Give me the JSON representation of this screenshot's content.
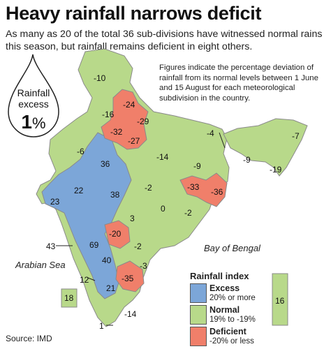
{
  "headline": "Heavy rainfall narrows deficit",
  "subhead": "As many as 20 of the total 36 sub-divisions have witnessed normal rains this season, but rainfall remains deficient in eight others.",
  "note": "Figures indicate the percentage deviation of rainfall from its normal levels between 1 June and 15 August for each meteorological subdivision in the country.",
  "national": {
    "line1": "Rainfall",
    "line2": "excess",
    "value": "1",
    "unit": "%"
  },
  "legend": {
    "title": "Rainfall index",
    "items": [
      {
        "name": "Excess",
        "range": "20% or more",
        "color": "#7ca6d8"
      },
      {
        "name": "Normal",
        "range": "19% to -19%",
        "color": "#b8d98a"
      },
      {
        "name": "Deficient",
        "range": "-20% or less",
        "color": "#f07f6a"
      }
    ]
  },
  "seas": {
    "arabian": "Arabian Sea",
    "bengal": "Bay of Bengal"
  },
  "source": "Source: IMD",
  "regions": {
    "jk": "-10",
    "hp": "-24",
    "punjab": "-16",
    "uttarakhand": "-29",
    "haryana": "-32",
    "west_up": "-27",
    "east_up": "-14",
    "west_rajasthan": "-6",
    "east_rajasthan": "36",
    "gujarat": "22",
    "saurashtra": "23",
    "west_mp": "38",
    "east_mp": "-2",
    "bihar": "-9",
    "jharkhand": "-33",
    "gangetic_wb": "-36",
    "shwb": "-4",
    "arunachal": "-7",
    "assam": "-9",
    "nmmt": "-19",
    "chhattisgarh": "0",
    "odisha": "-2",
    "vidarbha": "3",
    "marathwada": "-20",
    "madhya_maharashtra": "69",
    "konkan": "43",
    "telangana": "-2",
    "kerala_north": "40",
    "coastal_ap": "-3",
    "rayalaseema": "-35",
    "goa_karnataka": "12",
    "south_karnataka": "21",
    "tamil_nadu": "-14",
    "kerala": "1",
    "lakshadweep": "18",
    "andaman": "16"
  }
}
